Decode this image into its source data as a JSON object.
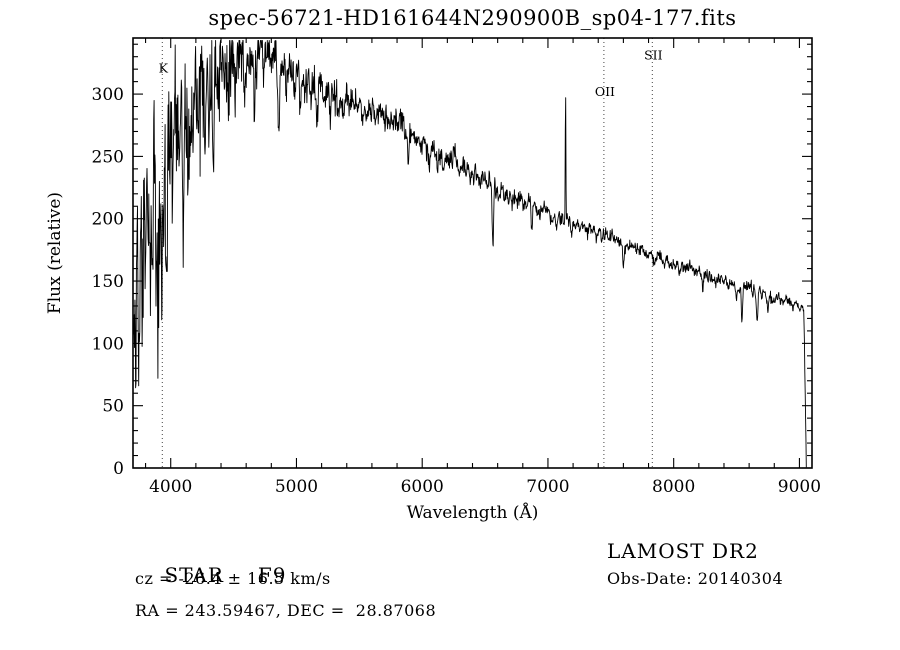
{
  "chart_data": {
    "type": "line",
    "title": "spec-56721-HD161644N290900B_sp04-177.fits",
    "xlabel": "Wavelength (Å)",
    "ylabel": "Flux (relative)",
    "xlim": [
      3700,
      9100
    ],
    "ylim": [
      0,
      345
    ],
    "xticks": [
      4000,
      5000,
      6000,
      7000,
      8000,
      9000
    ],
    "yticks": [
      0,
      50,
      100,
      150,
      200,
      250,
      300
    ],
    "x_minor_step": 200,
    "y_minor_step": 10,
    "grid": false,
    "legend": "none",
    "line_color": "#000000",
    "marked_lines": [
      {
        "label": "K",
        "wavelength": 3933,
        "label_frac_y": 0.08
      },
      {
        "label": "OII",
        "wavelength": 7445,
        "label_frac_y": 0.135
      },
      {
        "label": "SII",
        "wavelength": 7830,
        "label_frac_y": 0.05
      }
    ],
    "continuum": [
      [
        3700,
        145
      ],
      [
        3750,
        165
      ],
      [
        3800,
        190
      ],
      [
        3850,
        205
      ],
      [
        3900,
        220
      ],
      [
        3950,
        240
      ],
      [
        4000,
        258
      ],
      [
        4050,
        268
      ],
      [
        4100,
        275
      ],
      [
        4200,
        295
      ],
      [
        4300,
        308
      ],
      [
        4400,
        318
      ],
      [
        4500,
        325
      ],
      [
        4600,
        330
      ],
      [
        4700,
        332
      ],
      [
        4800,
        328
      ],
      [
        4900,
        318
      ],
      [
        5000,
        313
      ],
      [
        5100,
        308
      ],
      [
        5200,
        302
      ],
      [
        5300,
        297
      ],
      [
        5400,
        293
      ],
      [
        5500,
        290
      ],
      [
        5600,
        287
      ],
      [
        5700,
        282
      ],
      [
        5800,
        277
      ],
      [
        5900,
        268
      ],
      [
        6000,
        259
      ],
      [
        6100,
        251
      ],
      [
        6200,
        246
      ],
      [
        6300,
        241
      ],
      [
        6400,
        236
      ],
      [
        6500,
        229
      ],
      [
        6600,
        223
      ],
      [
        6700,
        218
      ],
      [
        6800,
        213
      ],
      [
        6900,
        208
      ],
      [
        7000,
        204
      ],
      [
        7100,
        199
      ],
      [
        7200,
        195
      ],
      [
        7300,
        192
      ],
      [
        7400,
        189
      ],
      [
        7500,
        185
      ],
      [
        7600,
        180
      ],
      [
        7700,
        175
      ],
      [
        7800,
        171
      ],
      [
        7900,
        167
      ],
      [
        8000,
        163
      ],
      [
        8100,
        160
      ],
      [
        8200,
        156
      ],
      [
        8300,
        153
      ],
      [
        8400,
        150
      ],
      [
        8500,
        147
      ],
      [
        8600,
        143
      ],
      [
        8700,
        140
      ],
      [
        8800,
        136
      ],
      [
        8900,
        133
      ],
      [
        9000,
        131
      ],
      [
        9055,
        129
      ]
    ],
    "absorption_lines": [
      [
        3727,
        50,
        5
      ],
      [
        3750,
        60,
        4
      ],
      [
        3771,
        55,
        4
      ],
      [
        3798,
        65,
        5
      ],
      [
        3835,
        80,
        5
      ],
      [
        3889,
        95,
        5
      ],
      [
        3933,
        120,
        6
      ],
      [
        3968,
        105,
        6
      ],
      [
        4045,
        35,
        4
      ],
      [
        4101,
        80,
        6
      ],
      [
        4144,
        30,
        4
      ],
      [
        4226,
        45,
        5
      ],
      [
        4271,
        30,
        4
      ],
      [
        4340,
        75,
        6
      ],
      [
        4383,
        40,
        5
      ],
      [
        4457,
        25,
        4
      ],
      [
        4526,
        25,
        4
      ],
      [
        4668,
        28,
        4
      ],
      [
        4861,
        60,
        6
      ],
      [
        4920,
        20,
        4
      ],
      [
        5167,
        25,
        5
      ],
      [
        5270,
        22,
        5
      ],
      [
        5890,
        30,
        5
      ],
      [
        6122,
        12,
        4
      ],
      [
        6563,
        50,
        6
      ],
      [
        6870,
        14,
        6
      ],
      [
        7186,
        10,
        6
      ],
      [
        7600,
        16,
        8
      ],
      [
        8230,
        10,
        6
      ],
      [
        8498,
        14,
        5
      ],
      [
        8542,
        26,
        5
      ],
      [
        8662,
        26,
        5
      ],
      [
        8750,
        12,
        5
      ]
    ],
    "emission_lines": [
      [
        7140,
        112,
        2.2
      ]
    ],
    "noise_envelope": [
      [
        3700,
        48
      ],
      [
        3800,
        45
      ],
      [
        3900,
        42
      ],
      [
        4000,
        34
      ],
      [
        4100,
        30
      ],
      [
        4200,
        26
      ],
      [
        4300,
        24
      ],
      [
        4400,
        20
      ],
      [
        4500,
        16
      ],
      [
        4700,
        13
      ],
      [
        4900,
        10
      ],
      [
        5100,
        8
      ],
      [
        5400,
        7
      ],
      [
        5700,
        6
      ],
      [
        6000,
        5.5
      ],
      [
        6400,
        4.5
      ],
      [
        6800,
        4
      ],
      [
        7200,
        3.5
      ],
      [
        7600,
        3
      ],
      [
        8000,
        3
      ],
      [
        8500,
        3
      ],
      [
        9055,
        2.5
      ]
    ],
    "red_cutoff": {
      "start": 9035,
      "end": 9055
    },
    "sample_step": 3,
    "seed": 11
  },
  "annotations": {
    "object_type": "STAR",
    "subclass": "F9",
    "cz": "cz = -26.4 ± 16.5 km/s",
    "radec": "RA = 243.59467, DEC =  28.87068",
    "survey": "LAMOST DR2",
    "obs_date": "Obs-Date: 20140304"
  }
}
